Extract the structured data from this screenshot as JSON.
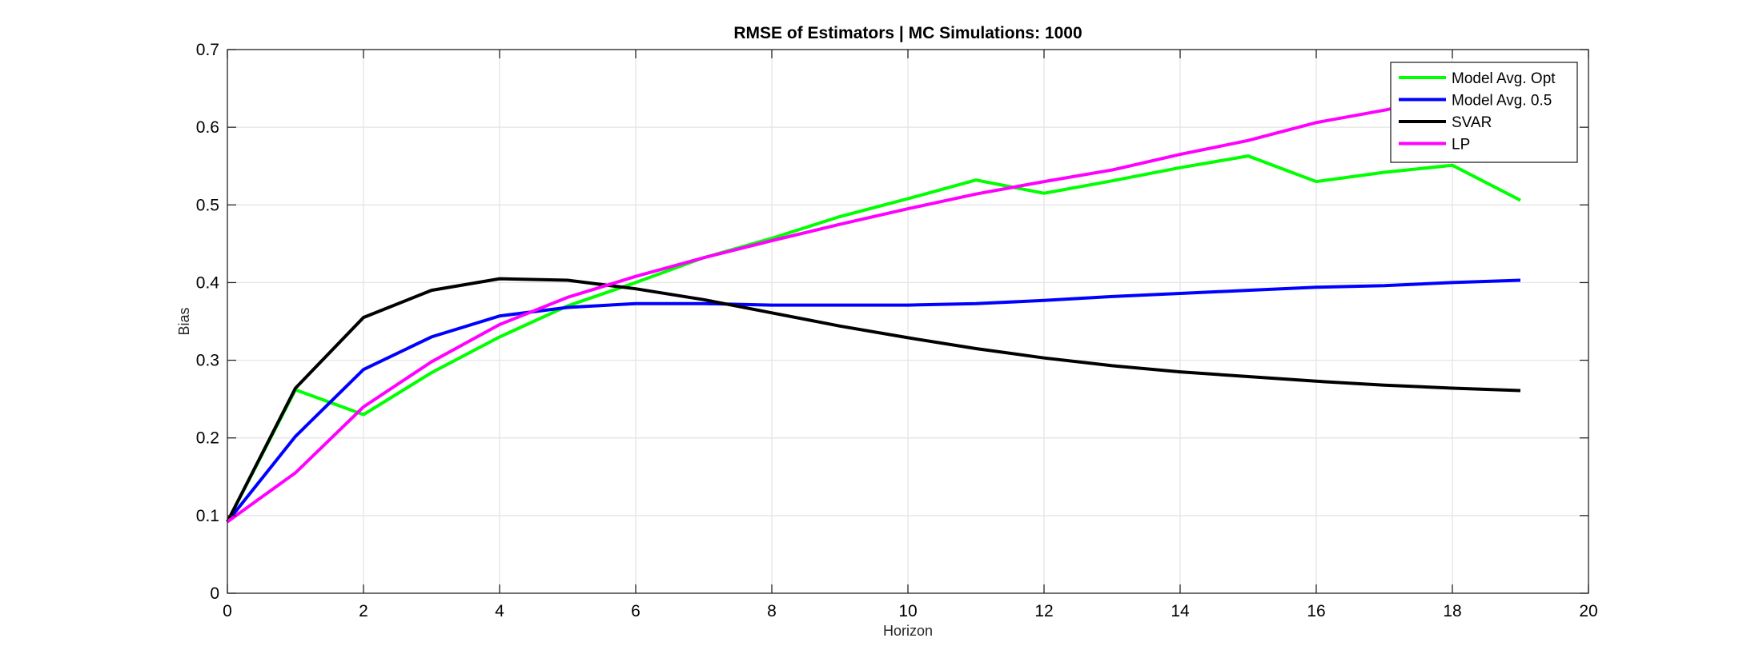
{
  "chart_data": {
    "type": "line",
    "title": "RMSE of Estimators | MC Simulations: 1000",
    "xlabel": "Horizon",
    "ylabel": "Bias",
    "xlim": [
      0,
      20
    ],
    "ylim": [
      0,
      0.7
    ],
    "xticks": [
      0,
      2,
      4,
      6,
      8,
      10,
      12,
      14,
      16,
      18,
      20
    ],
    "yticks": [
      0,
      0.1,
      0.2,
      0.3,
      0.4,
      0.5,
      0.6,
      0.7
    ],
    "xtick_labels": [
      "0",
      "2",
      "4",
      "6",
      "8",
      "10",
      "12",
      "14",
      "16",
      "18",
      "20"
    ],
    "ytick_labels": [
      "0",
      "0.1",
      "0.2",
      "0.3",
      "0.4",
      "0.5",
      "0.6",
      "0.7"
    ],
    "grid": true,
    "legend_position": "top-right",
    "x": [
      0,
      1,
      2,
      3,
      4,
      5,
      6,
      7,
      8,
      9,
      10,
      11,
      12,
      13,
      14,
      15,
      16,
      17,
      18,
      19
    ],
    "series": [
      {
        "name": "Model Avg. Opt",
        "color": "#00ff00",
        "values": [
          0.092,
          0.262,
          0.23,
          0.284,
          0.33,
          0.37,
          0.4,
          0.432,
          0.457,
          0.485,
          0.508,
          0.532,
          0.515,
          0.531,
          0.548,
          0.563,
          0.53,
          0.542,
          0.551,
          0.506
        ]
      },
      {
        "name": "Model Avg. 0.5",
        "color": "#0000ff",
        "values": [
          0.092,
          0.202,
          0.288,
          0.33,
          0.357,
          0.368,
          0.373,
          0.373,
          0.371,
          0.371,
          0.371,
          0.373,
          0.377,
          0.382,
          0.386,
          0.39,
          0.394,
          0.396,
          0.4,
          0.403
        ]
      },
      {
        "name": "SVAR",
        "color": "#000000",
        "values": [
          0.092,
          0.264,
          0.355,
          0.39,
          0.405,
          0.403,
          0.392,
          0.378,
          0.361,
          0.344,
          0.329,
          0.315,
          0.303,
          0.293,
          0.285,
          0.279,
          0.273,
          0.268,
          0.264,
          0.261
        ]
      },
      {
        "name": "LP",
        "color": "#ff00ff",
        "values": [
          0.092,
          0.155,
          0.24,
          0.298,
          0.346,
          0.381,
          0.408,
          0.432,
          0.454,
          0.475,
          0.495,
          0.514,
          0.53,
          0.545,
          0.565,
          0.583,
          0.606,
          0.622,
          0.64,
          0.658
        ]
      }
    ]
  }
}
